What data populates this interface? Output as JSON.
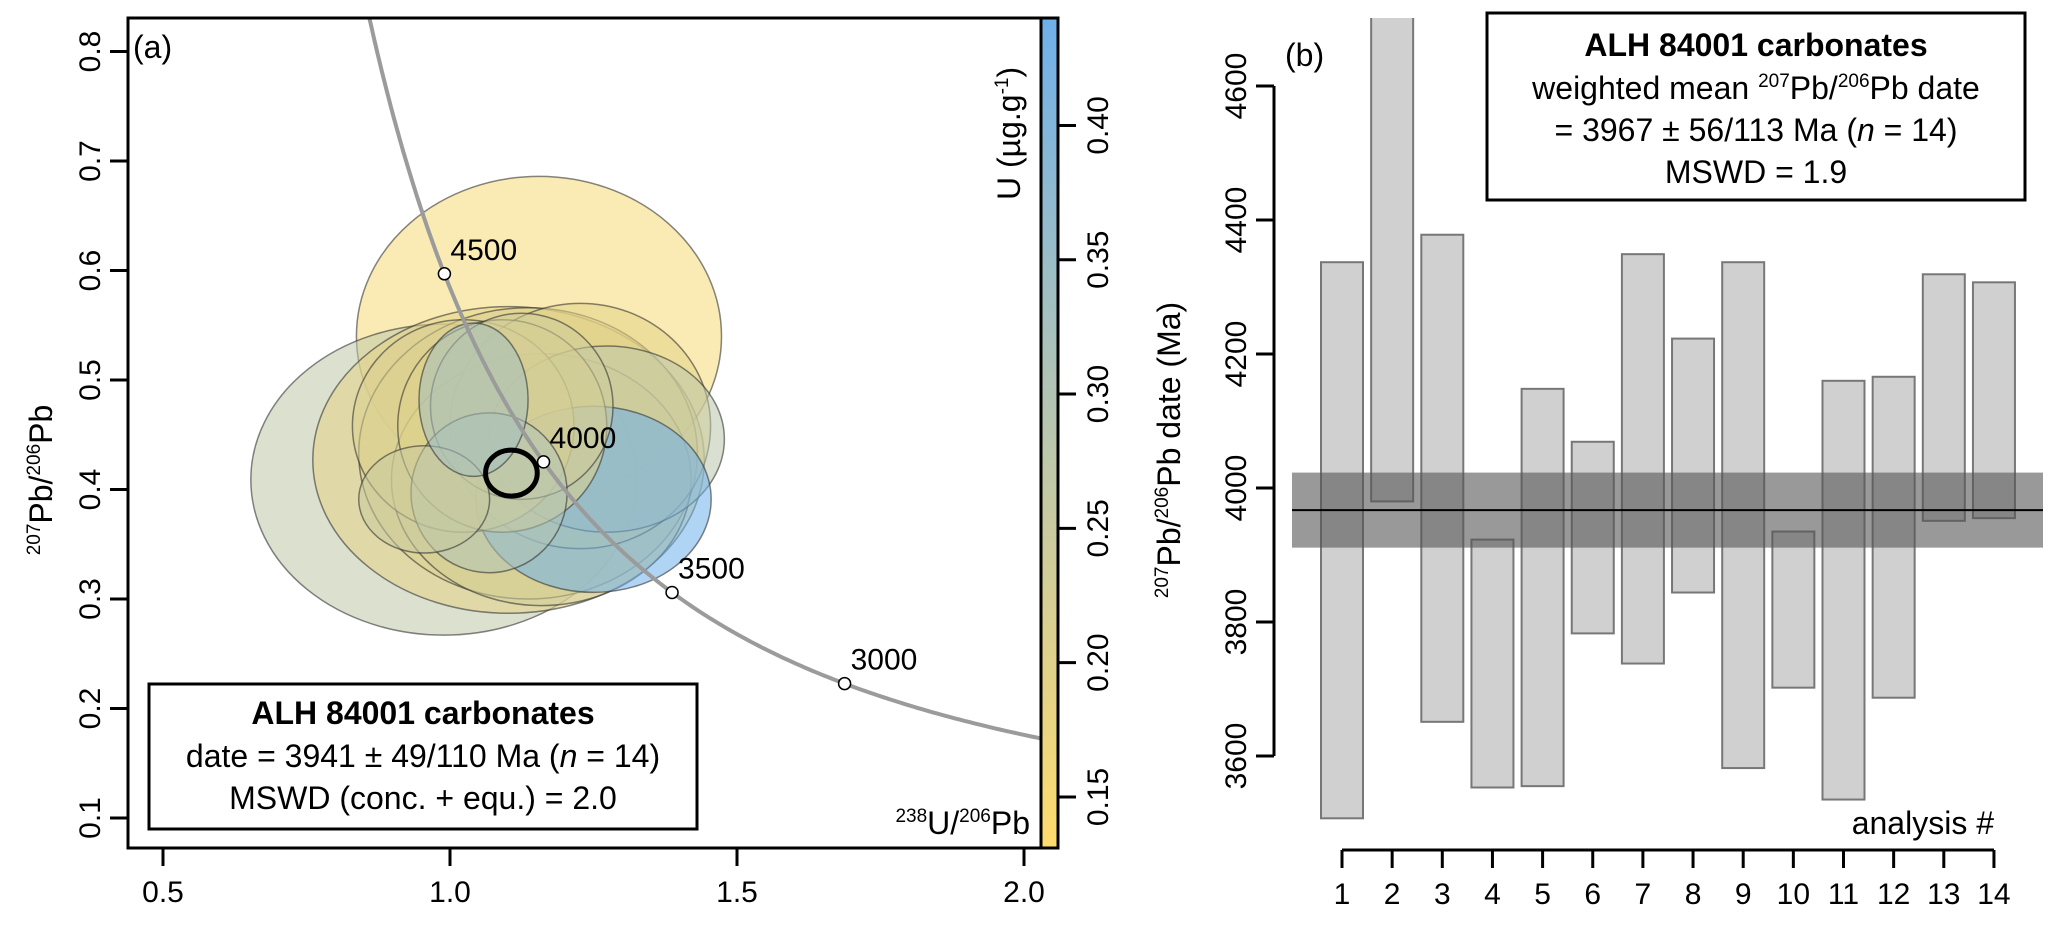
{
  "chart_data": [
    {
      "type": "scatter",
      "panel_label": "(a)",
      "xlabel": {
        "sup1": "238",
        "mid": "U/",
        "sup2": "206",
        "end": "Pb"
      },
      "ylabel": {
        "sup1": "207",
        "mid": "Pb/",
        "sup2": "206",
        "end": "Pb"
      },
      "xlim": [
        0.44,
        2.03
      ],
      "ylim": [
        0.073,
        0.83
      ],
      "xticks": [
        "0.5",
        "1.0",
        "1.5",
        "2.0"
      ],
      "yticks": [
        "0.1",
        "0.2",
        "0.3",
        "0.4",
        "0.5",
        "0.6",
        "0.7",
        "0.8"
      ],
      "concordia_ages_Ma": [
        3000,
        3500,
        4000,
        4500
      ],
      "concordia_labels": [
        "3000",
        "3500",
        "4000",
        "4500"
      ],
      "colorbar": {
        "label": "U (µg.g",
        "label_sup": "-1",
        "label_end": ")",
        "range": [
          0.131,
          0.44
        ],
        "ticks": [
          "0.15",
          "0.20",
          "0.25",
          "0.30",
          "0.35",
          "0.40"
        ],
        "colors": [
          "#FFDB6E",
          "#B9C6AE",
          "#6FB0EA"
        ]
      },
      "ellipses": [
        {
          "x": 1.155,
          "y": 0.54,
          "sx": 0.318,
          "sy": 0.146,
          "U": 0.15
        },
        {
          "x": 0.989,
          "y": 0.409,
          "sx": 0.336,
          "sy": 0.142,
          "U": 0.27
        },
        {
          "x": 1.102,
          "y": 0.427,
          "sx": 0.341,
          "sy": 0.14,
          "U": 0.19
        },
        {
          "x": 1.136,
          "y": 0.433,
          "sx": 0.295,
          "sy": 0.133,
          "U": 0.21
        },
        {
          "x": 1.159,
          "y": 0.409,
          "sx": 0.261,
          "sy": 0.115,
          "U": 0.23
        },
        {
          "x": 1.227,
          "y": 0.458,
          "sx": 0.227,
          "sy": 0.112,
          "U": 0.19
        },
        {
          "x": 1.273,
          "y": 0.446,
          "sx": 0.205,
          "sy": 0.085,
          "U": 0.28
        },
        {
          "x": 1.25,
          "y": 0.391,
          "sx": 0.205,
          "sy": 0.085,
          "U": 0.44
        },
        {
          "x": 1.023,
          "y": 0.458,
          "sx": 0.193,
          "sy": 0.097,
          "U": 0.21
        },
        {
          "x": 1.091,
          "y": 0.458,
          "sx": 0.182,
          "sy": 0.097,
          "U": 0.2
        },
        {
          "x": 1.125,
          "y": 0.476,
          "sx": 0.159,
          "sy": 0.085,
          "U": 0.24
        },
        {
          "x": 1.068,
          "y": 0.397,
          "sx": 0.136,
          "sy": 0.073,
          "U": 0.3
        },
        {
          "x": 0.955,
          "y": 0.391,
          "sx": 0.114,
          "sy": 0.049,
          "U": 0.25
        },
        {
          "x": 1.041,
          "y": 0.482,
          "sx": 0.095,
          "sy": 0.07,
          "U": 0.33
        }
      ],
      "mean_ellipse": {
        "x": 1.107,
        "y": 0.415,
        "sx": 0.045,
        "sy": 0.021
      },
      "legend": {
        "title": "ALH 84001 carbonates",
        "line1_pre": "date = 3941 ± 49/110 Ma (",
        "line1_n": "n",
        "line1_post": " = 14)",
        "line2": "MSWD (conc. + equ.) = 2.0",
        "placement": "bottom-left"
      }
    },
    {
      "type": "bar",
      "panel_label": "(b)",
      "ylabel": {
        "sup1": "207",
        "mid": "Pb/",
        "sup2": "206",
        "end": "Pb date (Ma)"
      },
      "xlabel": "analysis #",
      "ylim": [
        3460,
        4700
      ],
      "yticks": [
        "3600",
        "3800",
        "4000",
        "4200",
        "4400",
        "4600"
      ],
      "categories": [
        "1",
        "2",
        "3",
        "4",
        "5",
        "6",
        "7",
        "8",
        "9",
        "10",
        "11",
        "12",
        "13",
        "14"
      ],
      "lower": [
        3507,
        3980,
        3651,
        3553,
        3555,
        3783,
        3738,
        3844,
        3582,
        3702,
        3535,
        3687,
        3951,
        3955
      ],
      "upper": [
        4337,
        4703,
        4378,
        3923,
        4148,
        4069,
        4349,
        4223,
        4337,
        3935,
        4160,
        4166,
        4319,
        4307
      ],
      "weighted_mean": 3967,
      "mean_band_halfwidth": 56,
      "legend": {
        "title": "ALH 84001 carbonates",
        "line1_pre": "weighted mean ",
        "line1_sup1": "207",
        "line1_mid": "Pb/",
        "line1_sup2": "206",
        "line1_end": "Pb date",
        "line2_pre": "= 3967 ± 56/113 Ma (",
        "line2_n": "n",
        "line2_post": " = 14)",
        "line3": "MSWD = 1.9",
        "placement": "top-right"
      }
    }
  ]
}
